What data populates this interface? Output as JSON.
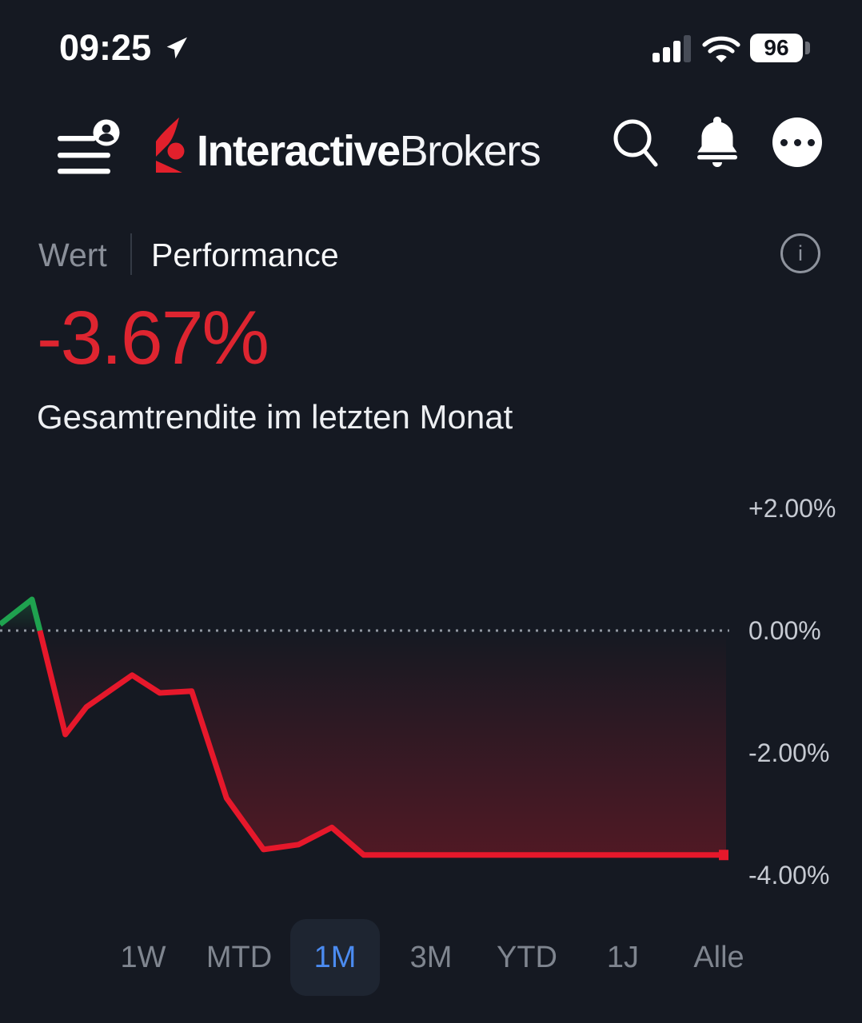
{
  "status_bar": {
    "time": "09:25",
    "battery": "96",
    "icons": [
      "location-arrow",
      "cellular-signal",
      "wifi",
      "battery"
    ]
  },
  "header": {
    "brand_bold": "Interactive",
    "brand_regular": "Brokers",
    "icons": [
      "hamburger-menu-with-avatar",
      "ibkr-logo-mark",
      "search",
      "notifications-bell",
      "more-ellipsis"
    ]
  },
  "view_tabs": {
    "items": [
      {
        "label": "Wert",
        "active": false
      },
      {
        "label": "Performance",
        "active": true
      }
    ],
    "info_icon": "i"
  },
  "summary": {
    "value": "-3.67%",
    "caption": "Gesamtrendite im letzten Monat"
  },
  "chart_data": {
    "type": "line",
    "title": "Gesamtrendite im letzten Monat",
    "unit": "percent",
    "current_value": -3.67,
    "x_axis": {
      "label": "",
      "range": [
        0,
        1
      ],
      "ticks_visible": false
    },
    "y_axis": {
      "range": [
        -4.55,
        2.45
      ],
      "ticks": [
        {
          "label": "+2.00%",
          "value": 2
        },
        {
          "label": "0.00%",
          "value": 0
        },
        {
          "label": "-2.00%",
          "value": -2
        },
        {
          "label": "-4.00%",
          "value": -4
        }
      ]
    },
    "zero_line": {
      "style": "dotted",
      "value": 0,
      "color": "#9096a0"
    },
    "grid": "none",
    "legend": "none",
    "series": [
      {
        "name": "return-above-zero",
        "color": "#1fa24f",
        "points": [
          [
            0,
            0.1
          ],
          [
            0.044,
            0.51
          ],
          [
            0.055,
            0
          ]
        ]
      },
      {
        "name": "return-below-zero",
        "color": "#e6182b",
        "points": [
          [
            0.055,
            0
          ],
          [
            0.09,
            -1.7
          ],
          [
            0.119,
            -1.25
          ],
          [
            0.182,
            -0.73
          ],
          [
            0.22,
            -1.02
          ],
          [
            0.264,
            -0.99
          ],
          [
            0.312,
            -2.74
          ],
          [
            0.363,
            -3.58
          ],
          [
            0.411,
            -3.5
          ],
          [
            0.457,
            -3.22
          ],
          [
            0.501,
            -3.67
          ],
          [
            1,
            -3.67
          ]
        ]
      }
    ]
  },
  "period_selector": {
    "selected": "1M",
    "options": [
      {
        "label": "1W"
      },
      {
        "label": "MTD"
      },
      {
        "label": "1M"
      },
      {
        "label": "3M"
      },
      {
        "label": "YTD"
      },
      {
        "label": "1J"
      },
      {
        "label": "Alle"
      }
    ]
  },
  "colors": {
    "background": "#151922",
    "negative_red": "#e6182b",
    "positive_green": "#1fa24f",
    "value_red": "#de2530",
    "active_blue": "#4b8bf0"
  }
}
